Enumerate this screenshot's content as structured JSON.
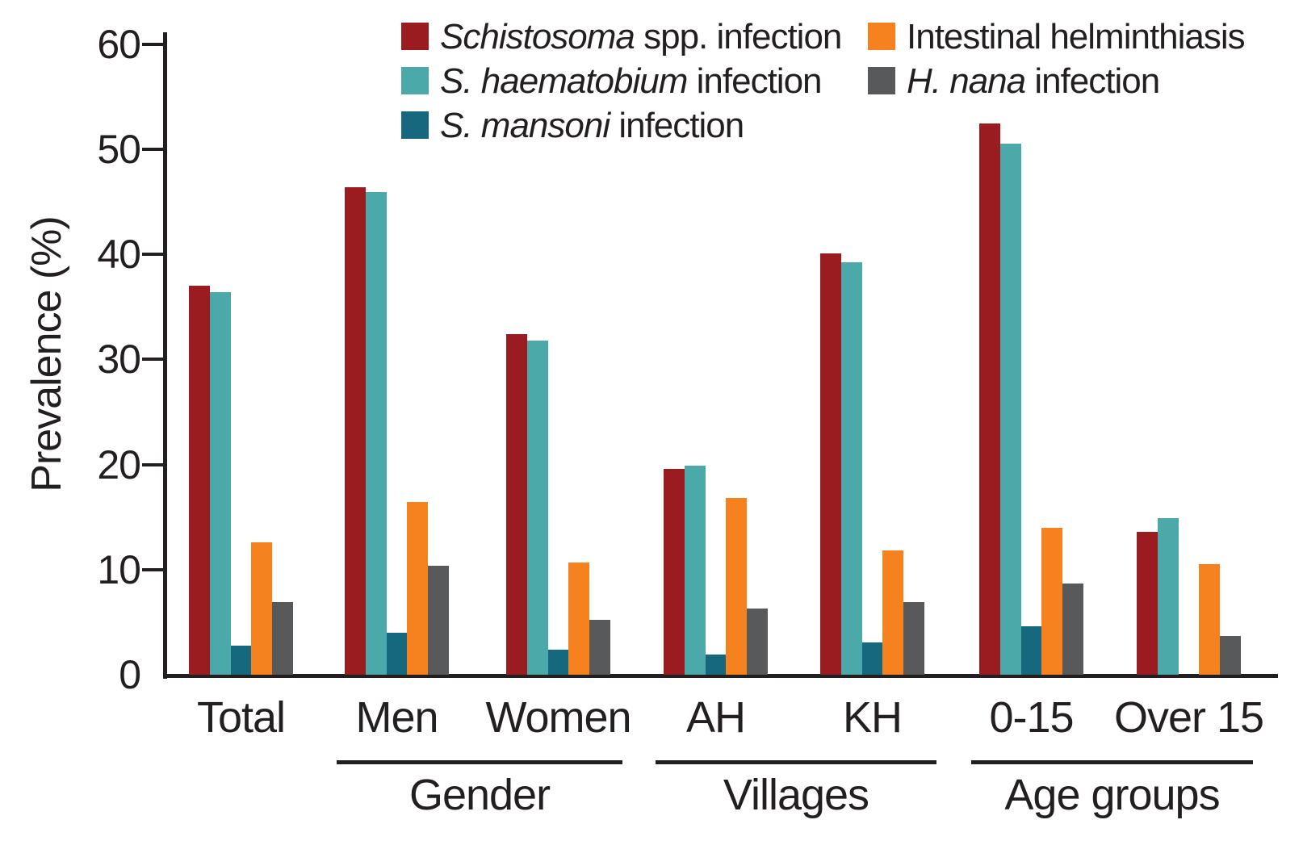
{
  "figure": {
    "background": "#ffffff",
    "text_color": "#231F20"
  },
  "chart_data": {
    "type": "bar",
    "title": "",
    "xlabel": "",
    "ylabel": "Prevalence (%)",
    "ylim": [
      0,
      60
    ],
    "yticks": [
      0,
      10,
      20,
      30,
      40,
      50,
      60
    ],
    "grid": "off",
    "legend_position": "top",
    "categories": [
      "Total",
      "Men",
      "Women",
      "AH",
      "KH",
      "0-15",
      "Over 15"
    ],
    "series": [
      {
        "name": "Schistosoma spp. infection",
        "label_italic": "Schistosoma",
        "label_rest": " spp. infection",
        "color": "#9B1C20",
        "values": [
          37.0,
          46.4,
          32.4,
          19.6,
          40.1,
          52.4,
          13.6
        ]
      },
      {
        "name": "S. haematobium infection",
        "label_italic": "S. haematobium",
        "label_rest": " infection",
        "color": "#4BA9AA",
        "values": [
          36.4,
          45.9,
          31.8,
          19.9,
          39.2,
          50.5,
          14.9
        ]
      },
      {
        "name": "S. mansoni infection",
        "label_italic": "S. mansoni",
        "label_rest": " infection",
        "color": "#16687F",
        "values": [
          2.8,
          4.0,
          2.4,
          1.9,
          3.1,
          4.6,
          0
        ]
      },
      {
        "name": "Intestinal helminthiasis",
        "label_italic": "",
        "label_rest": "Intestinal helminthiasis",
        "color": "#F5821F",
        "values": [
          12.6,
          16.4,
          10.7,
          16.8,
          11.8,
          14.0,
          10.5
        ]
      },
      {
        "name": "H. nana infection",
        "label_italic": "H. nana",
        "label_rest": " infection",
        "color": "#58595B",
        "values": [
          6.9,
          10.4,
          5.2,
          6.3,
          6.9,
          8.7,
          3.7
        ]
      }
    ],
    "group_brackets": [
      {
        "label": "Gender",
        "first_category": 1,
        "last_category": 2
      },
      {
        "label": "Villages",
        "first_category": 3,
        "last_category": 4
      },
      {
        "label": "Age groups",
        "first_category": 5,
        "last_category": 6
      }
    ]
  }
}
